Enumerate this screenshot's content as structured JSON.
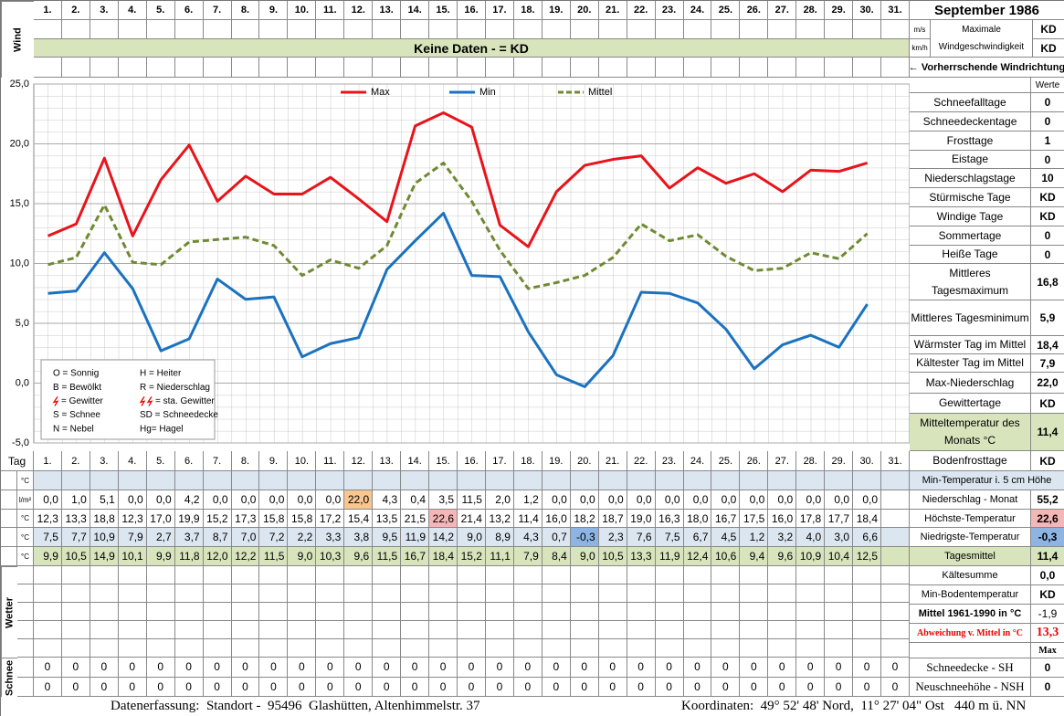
{
  "header": {
    "title": "September 1986",
    "wind_label": "Wind",
    "units": [
      "m/s",
      "km/h"
    ],
    "max_wind_label": "Maximale Windgeschwindigkeit",
    "max_wind_values": [
      "KD",
      "KD"
    ],
    "no_data": "Keine Daten -  = KD",
    "wind_direction": "← Vorherrschende Windrichtung"
  },
  "chart_data": {
    "type": "line",
    "categories": [
      "1.",
      "2.",
      "3.",
      "4.",
      "5.",
      "6.",
      "7.",
      "8.",
      "9.",
      "10.",
      "11.",
      "12.",
      "13.",
      "14.",
      "15.",
      "16.",
      "17.",
      "18.",
      "19.",
      "20.",
      "21.",
      "22.",
      "23.",
      "24.",
      "25.",
      "26.",
      "27.",
      "28.",
      "29.",
      "30.",
      "31."
    ],
    "series": [
      {
        "name": "Max",
        "color": "#e8141b",
        "dashed": false,
        "values": [
          12.3,
          13.3,
          18.8,
          12.3,
          17.0,
          19.9,
          15.2,
          17.3,
          15.8,
          15.8,
          17.2,
          15.4,
          13.5,
          21.5,
          22.6,
          21.4,
          13.2,
          11.4,
          16.0,
          18.2,
          18.7,
          19.0,
          16.3,
          18.0,
          16.7,
          17.5,
          16.0,
          17.8,
          17.7,
          18.4,
          null
        ],
        "value_labels": [
          "12,3",
          "13,3",
          "18,8",
          "12,3",
          "17,0",
          "19,9",
          "15,2",
          "17,3",
          "15,8",
          "15,8",
          "17,2",
          "15,4",
          "13,5",
          "21,5",
          "22,6",
          "21,4",
          "13,2",
          "11,4",
          "16,0",
          "18,2",
          "18,7",
          "19,0",
          "16,3",
          "18,0",
          "16,7",
          "17,5",
          "16,0",
          "17,8",
          "17,7",
          "18,4",
          null
        ]
      },
      {
        "name": "Min",
        "color": "#1a72c0",
        "dashed": false,
        "values": [
          7.5,
          7.7,
          10.9,
          7.9,
          2.7,
          3.7,
          8.7,
          7.0,
          7.2,
          2.2,
          3.3,
          3.8,
          9.5,
          11.9,
          14.2,
          9.0,
          8.9,
          4.3,
          0.7,
          -0.3,
          2.3,
          7.6,
          7.5,
          6.7,
          4.5,
          1.2,
          3.2,
          4.0,
          3.0,
          6.6,
          null
        ],
        "value_labels": [
          "7,5",
          "7,7",
          "10,9",
          "7,9",
          "2,7",
          "3,7",
          "8,7",
          "7,0",
          "7,2",
          "2,2",
          "3,3",
          "3,8",
          "9,5",
          "11,9",
          "14,2",
          "9,0",
          "8,9",
          "4,3",
          "0,7",
          "-0,3",
          "2,3",
          "7,6",
          "7,5",
          "6,7",
          "4,5",
          "1,2",
          "3,2",
          "4,0",
          "3,0",
          "6,6",
          null
        ]
      },
      {
        "name": "Mittel",
        "color": "#6f8a32",
        "dashed": true,
        "values": [
          9.9,
          10.5,
          14.9,
          10.1,
          9.9,
          11.8,
          12.0,
          12.2,
          11.5,
          9.0,
          10.3,
          9.6,
          11.5,
          16.7,
          18.4,
          15.2,
          11.1,
          7.9,
          8.4,
          9.0,
          10.5,
          13.3,
          11.9,
          12.4,
          10.6,
          9.4,
          9.6,
          10.9,
          10.4,
          12.5,
          null
        ],
        "value_labels": [
          "9,9",
          "10,5",
          "14,9",
          "10,1",
          "9,9",
          "11,8",
          "12,0",
          "12,2",
          "11,5",
          "9,0",
          "10,3",
          "9,6",
          "11,5",
          "16,7",
          "18,4",
          "15,2",
          "11,1",
          "7,9",
          "8,4",
          "9,0",
          "10,5",
          "13,3",
          "11,9",
          "12,4",
          "10,6",
          "9,4",
          "9,6",
          "10,9",
          "10,4",
          "12,5",
          null
        ]
      }
    ],
    "ylim": [
      -5,
      25
    ],
    "yticks": [
      {
        "value": 25,
        "label": "25,0"
      },
      {
        "value": 20,
        "label": "20,0"
      },
      {
        "value": 15,
        "label": "15,0"
      },
      {
        "value": 10,
        "label": "10,0"
      },
      {
        "value": 5,
        "label": "5,0"
      },
      {
        "value": 0,
        "label": "0,0"
      },
      {
        "value": -5,
        "label": "-5,0"
      }
    ],
    "grid": true,
    "legend": "top"
  },
  "weather_key": [
    "O = Sonnig",
    "H = Heiter",
    "B = Bewölkt",
    "R = Niederschlag",
    "= Gewitter",
    "= sta. Gewitter",
    "S = Schnee",
    "SD = Schneedecke",
    "N = Nebel",
    "Hg= Hagel"
  ],
  "stats": {
    "header": "Werte",
    "rows": [
      [
        "Schneefalltage",
        "0"
      ],
      [
        "Schneedeckentage",
        "0"
      ],
      [
        "Frosttage",
        "1"
      ],
      [
        "Eistage",
        "0"
      ],
      [
        "Niederschlagstage",
        "10"
      ],
      [
        "Stürmische Tage",
        "KD"
      ],
      [
        "Windige Tage",
        "KD"
      ],
      [
        "Sommertage",
        "0"
      ],
      [
        "Heiße Tage",
        "0"
      ],
      [
        "Mittleres Tagesmaximum",
        "16,8"
      ],
      [
        "Mittleres Tagesminimum",
        "5,9"
      ],
      [
        "Wärmster Tag im Mittel",
        "18,4"
      ],
      [
        "Kältester Tag im Mittel",
        "7,9"
      ],
      [
        "Max-Niederschlag",
        "22,0"
      ],
      [
        "Gewittertage",
        "KD"
      ],
      [
        "Mitteltemperatur des Monats °C",
        "11,4"
      ],
      [
        "Bodenfrosttage",
        "KD"
      ]
    ]
  },
  "table": {
    "tag_label": "Tag",
    "units": [
      "°C",
      "l/m²",
      "°C",
      "°C",
      "°C"
    ],
    "precipitation": [
      "0,0",
      "1,0",
      "5,1",
      "0,0",
      "0,0",
      "4,2",
      "0,0",
      "0,0",
      "0,0",
      "0,0",
      "0,0",
      "22,0",
      "4,3",
      "0,4",
      "3,5",
      "11,5",
      "2,0",
      "1,2",
      "0,0",
      "0,0",
      "0,0",
      "0,0",
      "0,0",
      "0,0",
      "0,0",
      "0,0",
      "0,0",
      "0,0",
      "0,0",
      "0,0"
    ],
    "weather_label": "Wetter",
    "snow_label": "Schnee",
    "snow_rows": [
      [
        0,
        0,
        0,
        0,
        0,
        0,
        0,
        0,
        0,
        0,
        0,
        0,
        0,
        0,
        0,
        0,
        0,
        0,
        0,
        0,
        0,
        0,
        0,
        0,
        0,
        0,
        0,
        0,
        0,
        0,
        0
      ],
      [
        0,
        0,
        0,
        0,
        0,
        0,
        0,
        0,
        0,
        0,
        0,
        0,
        0,
        0,
        0,
        0,
        0,
        0,
        0,
        0,
        0,
        0,
        0,
        0,
        0,
        0,
        0,
        0,
        0,
        0,
        0
      ]
    ]
  },
  "lower": {
    "header": "Min-Temperatur i. 5 cm Höhe",
    "rows": [
      [
        "Niederschlag - Monat",
        "55,2"
      ],
      [
        "Höchste-Temperatur",
        "22,6"
      ],
      [
        "Niedrigste-Temperatur",
        "-0,3"
      ],
      [
        "Tagesmittel",
        "11,4"
      ],
      [
        "Kältesumme",
        "0,0"
      ],
      [
        "Min-Bodentemperatur",
        "KD"
      ],
      [
        "Mittel 1961-1990 in °C",
        "-1,9"
      ],
      [
        "Abweichung v. Mittel in °C",
        "13,3"
      ]
    ],
    "max_label": "Max",
    "snow_rows": [
      [
        "Schneedecke -  SH",
        "0"
      ],
      [
        "Neuschneehöhe - NSH",
        "0"
      ]
    ]
  },
  "footer": {
    "left": "Datenerfassung:  Standort -  95496  Glashütten, Altenhimmelstr. 37",
    "right": "Koordinaten:  49° 52' 48' Nord,  11° 27' 04\" Ost   440 m ü. NN"
  }
}
